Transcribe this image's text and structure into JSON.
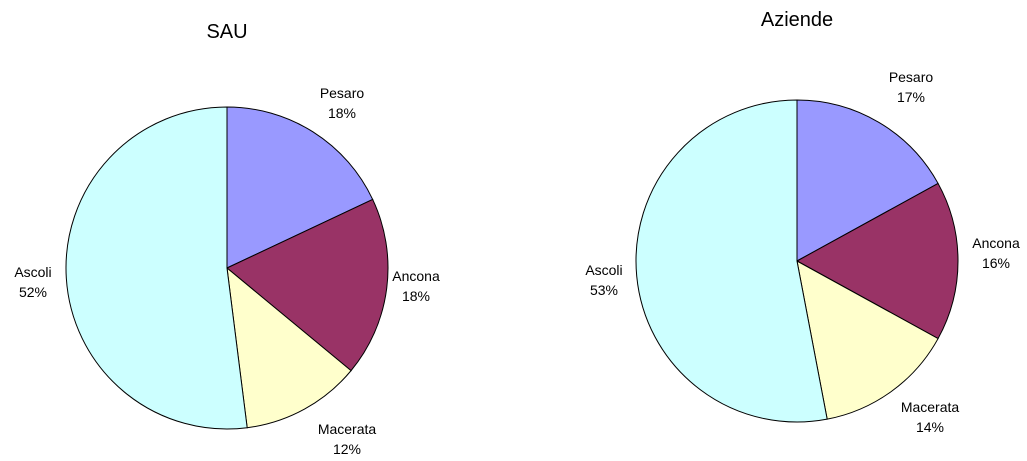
{
  "chart_data": [
    {
      "type": "pie",
      "title": "SAU",
      "categories": [
        "Pesaro",
        "Ancona",
        "Macerata",
        "Ascoli"
      ],
      "values": [
        18,
        18,
        12,
        52
      ],
      "value_labels": [
        "18%",
        "18%",
        "12%",
        "52%"
      ],
      "colors": [
        "#9999ff",
        "#993366",
        "#ffffcc",
        "#ccffff"
      ],
      "start_angle": "12 o'clock",
      "direction": "clockwise",
      "legend": "none"
    },
    {
      "type": "pie",
      "title": "Aziende",
      "categories": [
        "Pesaro",
        "Ancona",
        "Macerata",
        "Ascoli"
      ],
      "values": [
        17,
        16,
        14,
        53
      ],
      "value_labels": [
        "17%",
        "16%",
        "14%",
        "53%"
      ],
      "colors": [
        "#9999ff",
        "#993366",
        "#ffffcc",
        "#ccffff"
      ],
      "start_angle": "12 o'clock",
      "direction": "clockwise",
      "legend": "none"
    }
  ]
}
